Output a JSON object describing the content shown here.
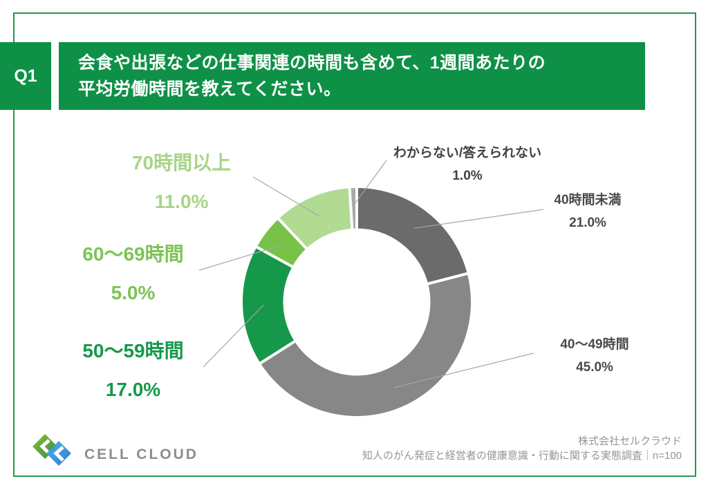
{
  "page": {
    "background": "#ffffff",
    "frame_color": "#23984f",
    "accent_green": "#0e9147"
  },
  "header": {
    "badge": "Q1",
    "line1": "会食や出張などの仕事関連の時間も含めて、1週間あたりの",
    "line2": "平均労働時間を教えてください。"
  },
  "chart_data": {
    "type": "pie",
    "style": "donut",
    "title": "会食や出張などの仕事関連の時間も含めて、1週間あたりの平均労働時間を教えてください。",
    "start_angle_deg": 0,
    "direction": "clockwise",
    "total": 100,
    "segments": [
      {
        "label": "40時間未満",
        "value": 21.0,
        "pct": "21.0%",
        "color": "#6b6b6b",
        "label_color": "#4a4a4a"
      },
      {
        "label": "40〜49時間",
        "value": 45.0,
        "pct": "45.0%",
        "color": "#878787",
        "label_color": "#4a4a4a"
      },
      {
        "label": "50〜59時間",
        "value": 17.0,
        "pct": "17.0%",
        "color": "#16984a",
        "label_color": "#16984a"
      },
      {
        "label": "60〜69時間",
        "value": 5.0,
        "pct": "5.0%",
        "color": "#78c24a",
        "label_color": "#7cc355"
      },
      {
        "label": "70時間以上",
        "value": 11.0,
        "pct": "11.0%",
        "color": "#b1da92",
        "label_color": "#a7d588"
      },
      {
        "label": "わからない/答えられない",
        "value": 1.0,
        "pct": "1.0%",
        "color": "#a9a9a9",
        "label_color": "#404040"
      }
    ]
  },
  "footer": {
    "brand": "CELL CLOUD",
    "company": "株式会社セルクラウド",
    "survey": "知人のがん発症と経営者の健康意識・行動に関する実態調査｜n=100"
  }
}
